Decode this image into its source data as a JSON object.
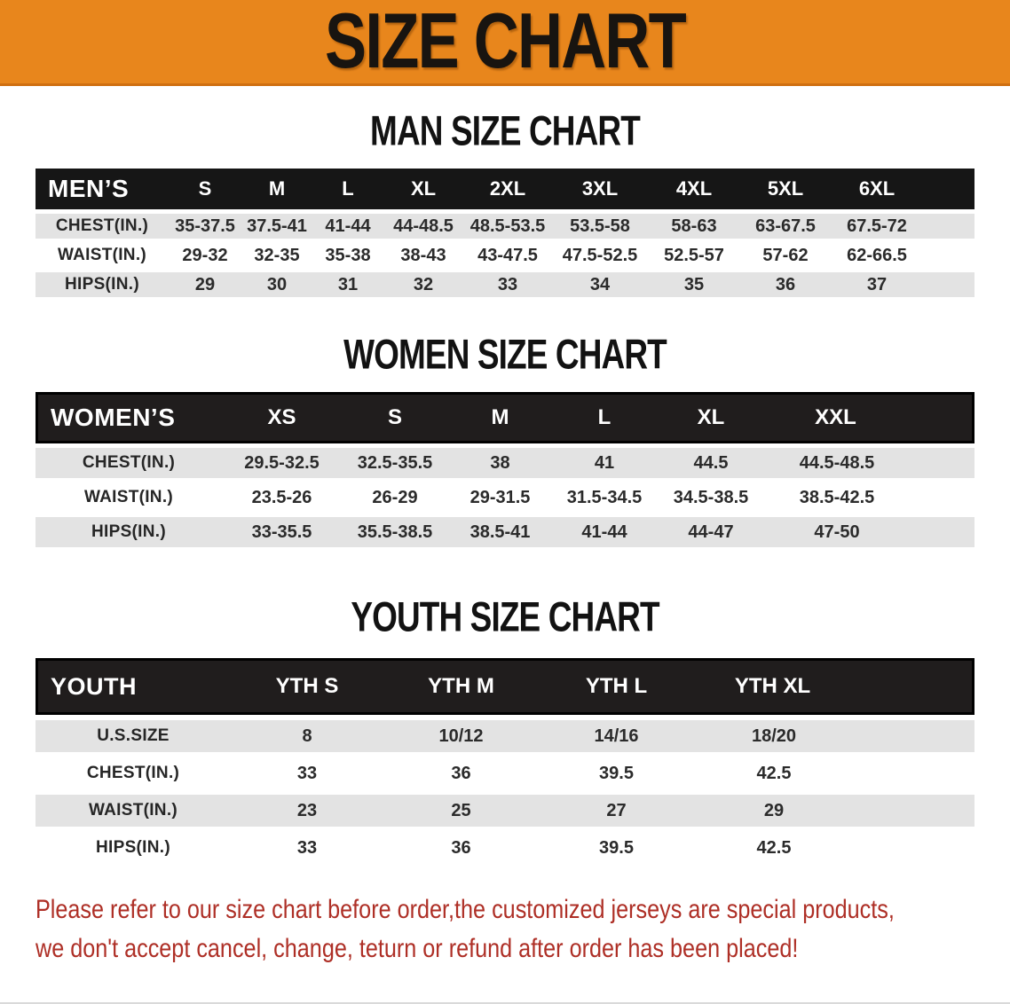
{
  "banner": {
    "title": "SIZE CHART"
  },
  "theme": {
    "banner_bg": "#E8861C",
    "header_bar_bg": "#161616",
    "header_bar_text": "#ffffff",
    "stripe_gray": "#e3e3e3",
    "disclaimer_red": "#AE2F26",
    "text_dark": "#1d1d1d"
  },
  "sections": [
    {
      "heading": "MAN SIZE CHART",
      "label": "MEN’S",
      "columns": [
        "S",
        "M",
        "L",
        "XL",
        "2XL",
        "3XL",
        "4XL",
        "5XL",
        "6XL"
      ],
      "rows": [
        {
          "label": "CHEST(IN.)",
          "values": [
            "35-37.5",
            "37.5-41",
            "41-44",
            "44-48.5",
            "48.5-53.5",
            "53.5-58",
            "58-63",
            "63-67.5",
            "67.5-72"
          ]
        },
        {
          "label": "WAIST(IN.)",
          "values": [
            "29-32",
            "32-35",
            "35-38",
            "38-43",
            "43-47.5",
            "47.5-52.5",
            "52.5-57",
            "57-62",
            "62-66.5"
          ]
        },
        {
          "label": "HIPS(IN.)",
          "values": [
            "29",
            "30",
            "31",
            "32",
            "33",
            "34",
            "35",
            "36",
            "37"
          ]
        }
      ]
    },
    {
      "heading": "WOMEN SIZE CHART",
      "label": "WOMEN’S",
      "columns": [
        "XS",
        "S",
        "M",
        "L",
        "XL",
        "XXL"
      ],
      "rows": [
        {
          "label": "CHEST(IN.)",
          "values": [
            "29.5-32.5",
            "32.5-35.5",
            "38",
            "41",
            "44.5",
            "44.5-48.5"
          ]
        },
        {
          "label": "WAIST(IN.)",
          "values": [
            "23.5-26",
            "26-29",
            "29-31.5",
            "31.5-34.5",
            "34.5-38.5",
            "38.5-42.5"
          ]
        },
        {
          "label": "HIPS(IN.)",
          "values": [
            "33-35.5",
            "35.5-38.5",
            "38.5-41",
            "41-44",
            "44-47",
            "47-50"
          ]
        }
      ]
    },
    {
      "heading": "YOUTH SIZE CHART",
      "label": "YOUTH",
      "columns": [
        "YTH S",
        "YTH M",
        "YTH L",
        "YTH XL"
      ],
      "rows": [
        {
          "label": "U.S.SIZE",
          "values": [
            "8",
            "10/12",
            "14/16",
            "18/20"
          ]
        },
        {
          "label": "CHEST(IN.)",
          "values": [
            "33",
            "36",
            "39.5",
            "42.5"
          ]
        },
        {
          "label": "WAIST(IN.)",
          "values": [
            "23",
            "25",
            "27",
            "29"
          ]
        },
        {
          "label": "HIPS(IN.)",
          "values": [
            "33",
            "36",
            "39.5",
            "42.5"
          ]
        }
      ]
    }
  ],
  "disclaimer": {
    "line1": "Please refer to our size chart before order,the customized jerseys are special products,",
    "line2": "we don't accept cancel, change, teturn or refund after order has been placed!"
  }
}
